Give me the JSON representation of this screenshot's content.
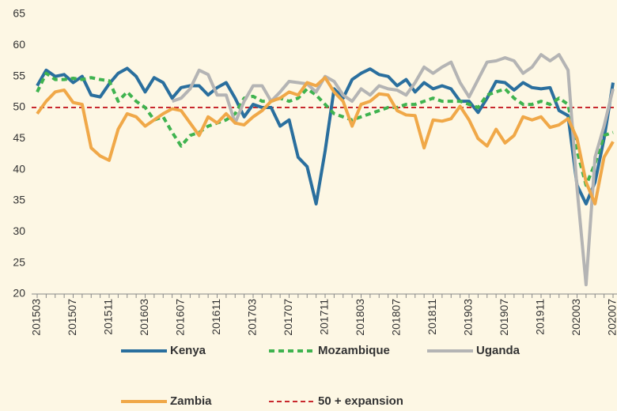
{
  "chart_data": {
    "type": "line",
    "categories": [
      "201503",
      null,
      null,
      null,
      "201507",
      null,
      null,
      null,
      "201511",
      null,
      null,
      null,
      "201603",
      null,
      null,
      null,
      "201607",
      null,
      null,
      null,
      "201611",
      null,
      null,
      null,
      "201703",
      null,
      null,
      null,
      "201707",
      null,
      null,
      null,
      "201711",
      null,
      null,
      null,
      "201803",
      null,
      null,
      null,
      "201807",
      null,
      null,
      null,
      "201811",
      null,
      null,
      null,
      "201903",
      null,
      null,
      null,
      "201907",
      null,
      null,
      null,
      "201911",
      null,
      null,
      null,
      "202003",
      null,
      null,
      null,
      "202007"
    ],
    "series": [
      {
        "name": "Kenya",
        "color": "#2a6f9e",
        "dash": false,
        "values": [
          53.5,
          56,
          55,
          55.3,
          54,
          55,
          52,
          51.7,
          53.8,
          55.5,
          56.3,
          55,
          52.5,
          54.8,
          54,
          51.5,
          53.2,
          53.5,
          53.5,
          52,
          53.2,
          54,
          51.5,
          48.5,
          50.5,
          50,
          50,
          47,
          48,
          42,
          40.5,
          34.5,
          43,
          53,
          51.5,
          54.5,
          55.5,
          56.2,
          55.3,
          55,
          53.5,
          54.5,
          52.5,
          54,
          53,
          53.5,
          53,
          51,
          51,
          49.2,
          51.5,
          54.2,
          54,
          52.8,
          54,
          53.2,
          53,
          53.2,
          49.5,
          48.7,
          37.5,
          34.5,
          38,
          45,
          54
        ]
      },
      {
        "name": "Mozambique",
        "color": "#3fb34f",
        "dash": true,
        "values": [
          52.5,
          55.5,
          54.5,
          54.5,
          54.7,
          54.5,
          54.8,
          54.5,
          54.3,
          51,
          52.5,
          51,
          50,
          48,
          48.5,
          46,
          43.8,
          45.5,
          46,
          47,
          47.5,
          48,
          49,
          51.5,
          51.8,
          51,
          51,
          51.5,
          51,
          51.5,
          53,
          52,
          50.5,
          49,
          48.5,
          48,
          48.5,
          49,
          49.5,
          50,
          50,
          50.5,
          50.5,
          51,
          51.5,
          51,
          51,
          51,
          50.5,
          50,
          52,
          52.5,
          53,
          51.5,
          50.5,
          50.5,
          51,
          50.5,
          51.5,
          50.5,
          43,
          37.5,
          41,
          45.5,
          46
        ]
      },
      {
        "name": "Uganda",
        "color": "#b4b4b4",
        "dash": false,
        "values": [
          null,
          null,
          null,
          null,
          null,
          null,
          null,
          null,
          null,
          null,
          null,
          null,
          null,
          null,
          null,
          51,
          51.5,
          53,
          56,
          55.3,
          52,
          52,
          47.5,
          51,
          53.5,
          53.5,
          51,
          52.5,
          54.2,
          54,
          53.8,
          52.5,
          55,
          54.2,
          52,
          51,
          53,
          52,
          53.5,
          53,
          52.8,
          52,
          54,
          56.5,
          55.5,
          56.5,
          57.3,
          54,
          51.7,
          54.5,
          57.3,
          57.5,
          58,
          57.5,
          55.5,
          56.5,
          58.5,
          57.5,
          58.5,
          56,
          37,
          21.5,
          42,
          47,
          53
        ]
      },
      {
        "name": "Zambia",
        "color": "#f0a848",
        "dash": false,
        "values": [
          49,
          51,
          52.5,
          52.8,
          50.8,
          50.5,
          43.5,
          42.2,
          41.5,
          46.5,
          49,
          48.5,
          47,
          48,
          49,
          49.8,
          49.5,
          47.5,
          45.5,
          48.5,
          47.5,
          49,
          47.5,
          47.2,
          48.5,
          49.5,
          51,
          51.5,
          52.5,
          52,
          54,
          53.5,
          54.8,
          52.5,
          51,
          47,
          50.5,
          51,
          52.2,
          52,
          49.5,
          48.8,
          48.7,
          43.5,
          48,
          47.8,
          48.2,
          50.2,
          48,
          45,
          43.8,
          46.5,
          44.3,
          45.5,
          48.5,
          48,
          48.5,
          46.8,
          47.2,
          48.2,
          45,
          38,
          34.5,
          42,
          44.5
        ]
      }
    ],
    "reference_line": {
      "name": "50 + expansion",
      "value": 50,
      "color": "#c8282d"
    },
    "ylim": [
      20,
      65
    ],
    "yticks": [
      20,
      25,
      30,
      35,
      40,
      45,
      50,
      55,
      60,
      65
    ],
    "grid": false
  }
}
